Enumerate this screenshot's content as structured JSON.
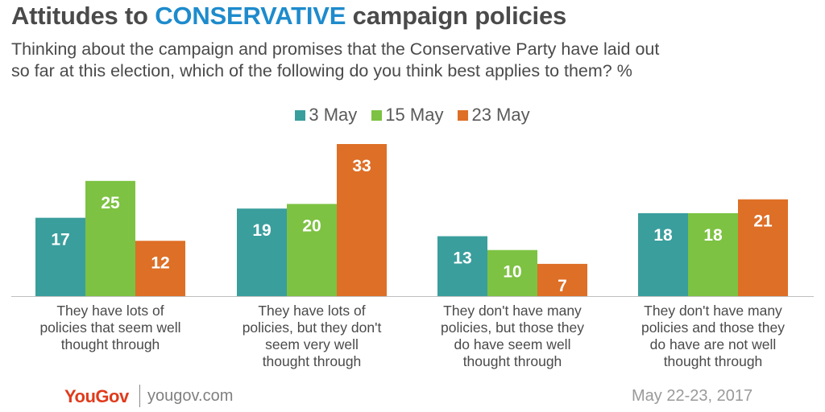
{
  "header": {
    "title_pre": "Attitudes to ",
    "title_highlight": "CONSERVATIVE",
    "title_post": " campaign policies",
    "subtitle_line1": "Thinking about the campaign and promises that the Conservative Party have laid out",
    "subtitle_line2": "so far at this election, which of the following do you think best applies to them? %"
  },
  "chart_data": {
    "type": "bar",
    "categories": [
      [
        "They have lots of",
        "policies that seem well",
        "thought through"
      ],
      [
        "They have lots of",
        "policies, but they don't",
        "seem very well",
        "thought through"
      ],
      [
        "They don't have many",
        "policies, but those they",
        "do have seem well",
        "thought through"
      ],
      [
        "They don't have many",
        "policies and those they",
        "do have are not well",
        "thought through"
      ]
    ],
    "series": [
      {
        "name": "3 May",
        "color": "#3a9e9d",
        "values": [
          17,
          19,
          13,
          18
        ]
      },
      {
        "name": "15 May",
        "color": "#7dc242",
        "values": [
          25,
          20,
          10,
          18
        ]
      },
      {
        "name": "23 May",
        "color": "#de6f26",
        "values": [
          12,
          33,
          7,
          21
        ]
      }
    ],
    "ylim": [
      0,
      33
    ],
    "legend_position": "top-center",
    "data_labels": true
  },
  "footer": {
    "logo": "YouGov",
    "url": "yougov.com",
    "date": "May 22-23, 2017"
  }
}
